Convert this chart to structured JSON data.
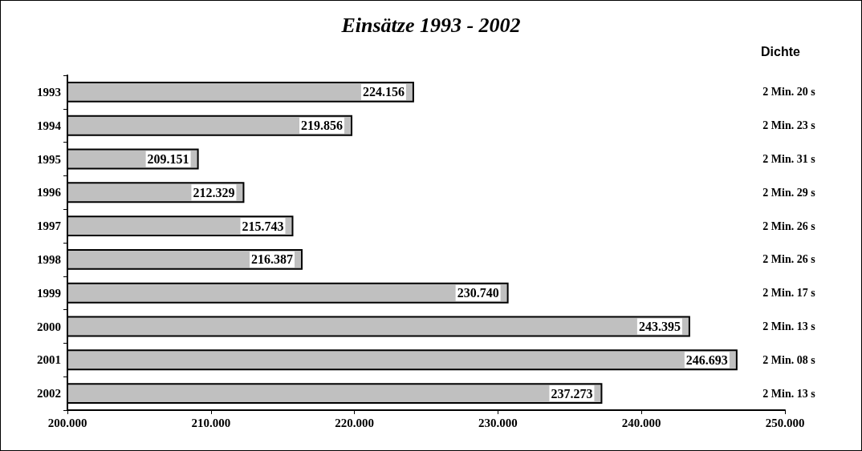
{
  "chart_data": {
    "type": "bar",
    "orientation": "horizontal",
    "title": "Einsätze 1993 - 2002",
    "categories": [
      "1993",
      "1994",
      "1995",
      "1996",
      "1997",
      "1998",
      "1999",
      "2000",
      "2001",
      "2002"
    ],
    "values": [
      224156,
      219856,
      209151,
      212329,
      215743,
      216387,
      230740,
      243395,
      246693,
      237273
    ],
    "value_labels": [
      "224.156",
      "219.856",
      "209.151",
      "212.329",
      "215.743",
      "216.387",
      "230.740",
      "243.395",
      "246.693",
      "237.273"
    ],
    "color": "#c0c0c0",
    "xlim": [
      200000,
      250000
    ],
    "xticks": [
      {
        "value": 200000,
        "label": "200.000"
      },
      {
        "value": 210000,
        "label": "210.000"
      },
      {
        "value": 220000,
        "label": "220.000"
      },
      {
        "value": 230000,
        "label": "230.000"
      },
      {
        "value": 240000,
        "label": "240.000"
      },
      {
        "value": 250000,
        "label": "250.000"
      }
    ],
    "annotations": [
      "Dichte",
      "2 Min. 20 s",
      "2 Min. 23 s",
      "2 Min. 31 s",
      "2 Min. 29 s",
      "2 Min. 26 s",
      "2 Min. 26 s",
      "2 Min. 17 s",
      "2 Min. 13 s",
      "2 Min. 08 s",
      "2 Min. 13 s"
    ],
    "grid": false
  }
}
